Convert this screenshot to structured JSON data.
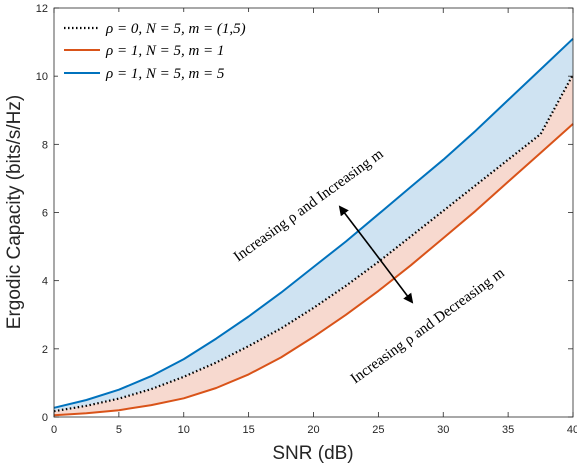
{
  "chart_data": {
    "type": "line",
    "title": "",
    "xlabel": "SNR (dB)",
    "ylabel": "Ergodic Capacity (bits/s/Hz)",
    "xlim": [
      0,
      40
    ],
    "ylim": [
      0,
      12
    ],
    "xticks": [
      0,
      5,
      10,
      15,
      20,
      25,
      30,
      35,
      40
    ],
    "yticks": [
      0,
      2,
      4,
      6,
      8,
      10,
      12
    ],
    "xtick_labels": [
      "0",
      "5",
      "10",
      "15",
      "20",
      "25",
      "30",
      "35",
      "40"
    ],
    "ytick_labels": [
      "0",
      "2",
      "4",
      "6",
      "8",
      "10",
      "12"
    ],
    "grid": false,
    "legend_position": "top-left",
    "x": [
      0,
      2.5,
      5,
      7.5,
      10,
      12.5,
      15,
      17.5,
      20,
      22.5,
      25,
      27.5,
      30,
      32.5,
      35,
      37.5,
      40
    ],
    "series": [
      {
        "name": "ρ = 0, N = 5, m = (1,5)",
        "color": "#000000",
        "style": "dotted",
        "values": [
          0.17,
          0.33,
          0.54,
          0.82,
          1.18,
          1.6,
          2.08,
          2.6,
          3.2,
          3.85,
          4.55,
          5.3,
          6.05,
          6.8,
          7.55,
          8.3,
          10.05
        ]
      },
      {
        "name": "ρ = 1, N = 5, m = 1",
        "color": "#d95319",
        "style": "solid",
        "values": [
          0.05,
          0.11,
          0.2,
          0.35,
          0.55,
          0.85,
          1.25,
          1.75,
          2.35,
          3.0,
          3.7,
          4.45,
          5.25,
          6.05,
          6.9,
          7.75,
          8.6
        ]
      },
      {
        "name": "ρ = 1, N = 5, m = 5",
        "color": "#0072bd",
        "style": "solid",
        "values": [
          0.27,
          0.5,
          0.8,
          1.2,
          1.7,
          2.3,
          2.95,
          3.65,
          4.4,
          5.15,
          5.95,
          6.75,
          7.55,
          8.4,
          9.3,
          10.2,
          11.1
        ]
      }
    ],
    "shaded_regions": [
      {
        "between": [
          "ρ = 1, N = 5, m = 5",
          "ρ = 0, N = 5, m = (1,5)"
        ],
        "color": "#cfe3f2"
      },
      {
        "between": [
          "ρ = 0, N = 5, m = (1,5)",
          "ρ = 1, N = 5, m = 1"
        ],
        "color": "#f7d9cf"
      }
    ],
    "annotations": [
      {
        "text": "Increasing ρ and Increasing m"
      },
      {
        "text": "Increasing ρ and Decreasing m"
      }
    ]
  }
}
